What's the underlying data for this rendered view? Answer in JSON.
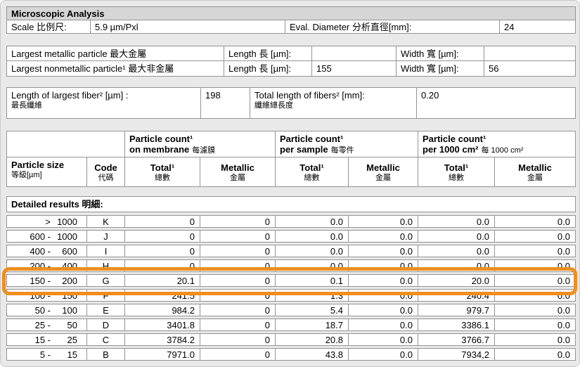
{
  "page": {
    "accent": "#EE8F1F",
    "header_bg": "#D6D6D6"
  },
  "title": "Microscopic Analysis",
  "scale_row": {
    "label": "Scale 比例尺:",
    "value": "5.9 µm/Pxl",
    "eval_label": "Eval. Diameter 分析直徑[mm]:",
    "eval_value": "24"
  },
  "largest": {
    "rows": [
      {
        "label": "Largest metallic particle 最大金屬",
        "length_label": "Length 長 [µm]:",
        "length_value": "",
        "width_label": "Width 寬 [µm]:",
        "width_value": ""
      },
      {
        "label": "Largest nonmetallic particle¹ 最大非金屬",
        "length_label": "Length 長 [µm]:",
        "length_value": "155",
        "width_label": "Width 寬 [µm]:",
        "width_value": "56"
      }
    ]
  },
  "fiber": {
    "label_en": "Length of largest fiber² [µm] :",
    "label_zh": "最長纖維",
    "value": "198",
    "total_label_en": "Total length of fibers² [mm]:",
    "total_label_zh": "纖維總長度",
    "total_value": "0.20"
  },
  "counts_header": {
    "groups": [
      {
        "line1": "Particle count¹",
        "line2_en": "on membrane",
        "line2_zh": "每濾膜"
      },
      {
        "line1": "Particle count¹",
        "line2_en": "per sample",
        "line2_zh": "每零件"
      },
      {
        "line1": "Particle count¹",
        "line2_en": "per 1000 cm²",
        "line2_zh": "每 1000 cm²"
      }
    ],
    "size_col": {
      "en": "Particle size",
      "zh": "等級[µm]"
    },
    "code_col": {
      "en": "Code",
      "zh": "代碼"
    },
    "total_col": {
      "en": "Total¹",
      "zh": "總數"
    },
    "metallic_col": {
      "en": "Metallic",
      "zh": "金屬"
    }
  },
  "detailed": {
    "title": "Detailed results 明細:",
    "rows": [
      {
        "size_a": ">",
        "size_b": "1000",
        "code": "K",
        "values": [
          "0",
          "0",
          "0.0",
          "0.0",
          "0.0",
          "0.0"
        ],
        "highlight": false
      },
      {
        "size_a": "600 -",
        "size_b": "1000",
        "code": "J",
        "values": [
          "0",
          "0",
          "0.0",
          "0.0",
          "0.0",
          "0.0"
        ],
        "highlight": false
      },
      {
        "size_a": "400 -",
        "size_b": "600",
        "code": "I",
        "values": [
          "0",
          "0",
          "0.0",
          "0.0",
          "0.0",
          "0.0"
        ],
        "highlight": false
      },
      {
        "size_a": "200 -",
        "size_b": "400",
        "code": "H",
        "values": [
          "0",
          "0",
          "0.0",
          "0.0",
          "0.0",
          "0.0"
        ],
        "highlight": false
      },
      {
        "size_a": "150 -",
        "size_b": "200",
        "code": "G",
        "values": [
          "20.1",
          "0",
          "0.1",
          "0.0",
          "20.0",
          "0.0"
        ],
        "highlight": true
      },
      {
        "size_a": "100 -",
        "size_b": "150",
        "code": "F",
        "values": [
          "241.5",
          "0",
          "1.3",
          "0.0",
          "240.4",
          "0.0"
        ],
        "highlight": false
      },
      {
        "size_a": "50 -",
        "size_b": "100",
        "code": "E",
        "values": [
          "984.2",
          "0",
          "5.4",
          "0.0",
          "979.7",
          "0.0"
        ],
        "highlight": false
      },
      {
        "size_a": "25 -",
        "size_b": "50",
        "code": "D",
        "values": [
          "3401.8",
          "0",
          "18.7",
          "0.0",
          "3386.1",
          "0.0"
        ],
        "highlight": false
      },
      {
        "size_a": "15 -",
        "size_b": "25",
        "code": "C",
        "values": [
          "3784.2",
          "0",
          "20.8",
          "0.0",
          "3766.7",
          "0.0"
        ],
        "highlight": false
      },
      {
        "size_a": "5 -",
        "size_b": "15",
        "code": "B",
        "values": [
          "7971.0",
          "0",
          "43.8",
          "0.0",
          "7934,2",
          "0.0"
        ],
        "highlight": false
      }
    ]
  }
}
